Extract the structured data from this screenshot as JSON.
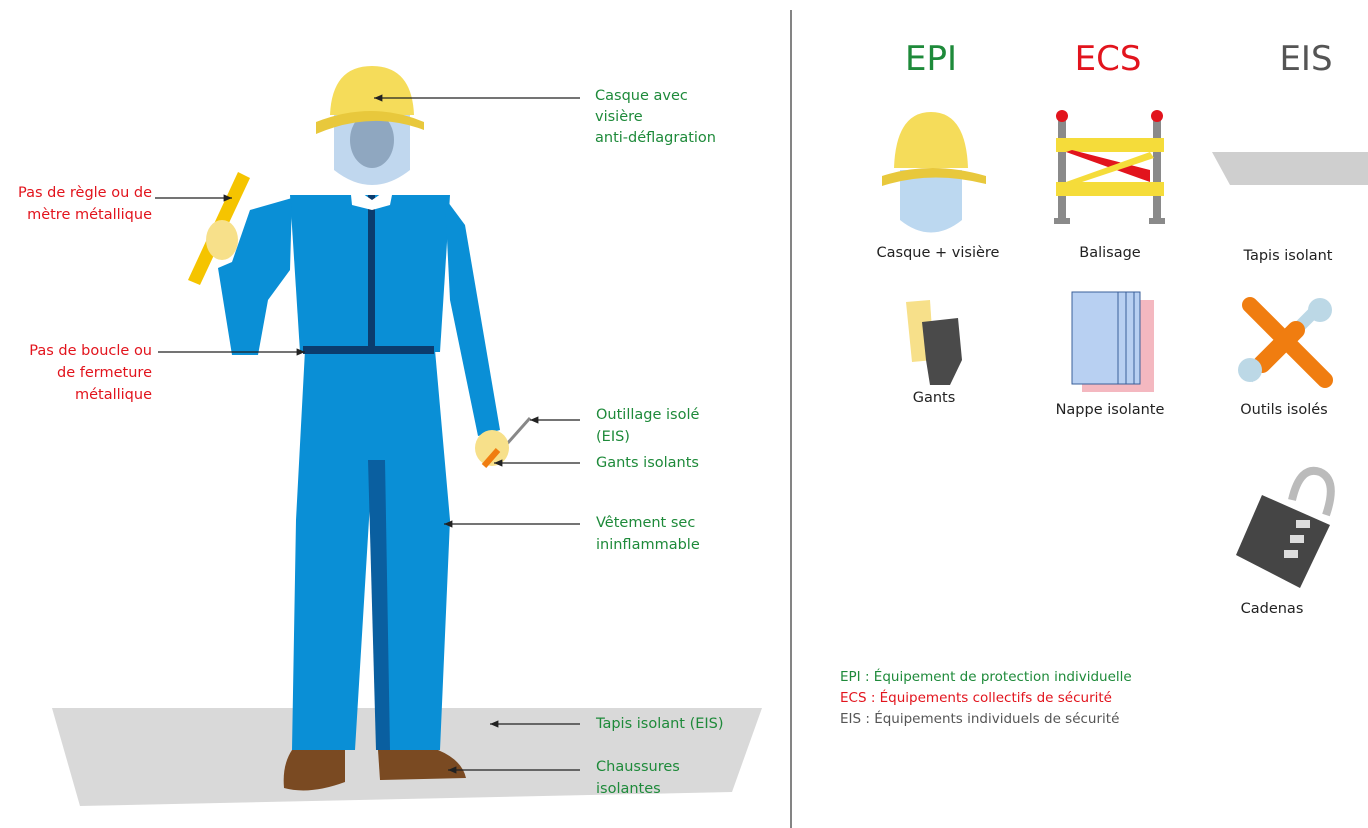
{
  "figure_labels": [
    {
      "lines": [
        "Casque avec",
        "visière",
        "anti-déflagration"
      ]
    },
    {
      "lines": [
        "Pas de règle ou de",
        "mètre métallique"
      ]
    },
    {
      "lines": [
        "Pas de boucle ou",
        "de fermeture",
        "métallique"
      ]
    },
    {
      "lines": [
        "Outillage isolé",
        "(EIS)"
      ]
    },
    {
      "lines": [
        "Gants isolants"
      ]
    },
    {
      "lines": [
        "Vêtement sec",
        "ininflammable"
      ]
    },
    {
      "lines": [
        "Tapis isolant (EIS)"
      ]
    },
    {
      "lines": [
        "Chaussures",
        "isolantes"
      ]
    }
  ],
  "columns": [
    {
      "heading": "EPI",
      "items": [
        "Casque + visière",
        "Gants"
      ]
    },
    {
      "heading": "ECS",
      "items": [
        "Balisage",
        "Nappe isolante"
      ]
    },
    {
      "heading": "EIS",
      "items": [
        "Tapis isolant",
        "Outils isolés",
        "Cadenas"
      ]
    }
  ],
  "legend": [
    "EPI : Équipement de protection individuelle",
    "ECS : Équipements collectifs de sécurité",
    "EIS : Équipements individuels de sécurité"
  ]
}
